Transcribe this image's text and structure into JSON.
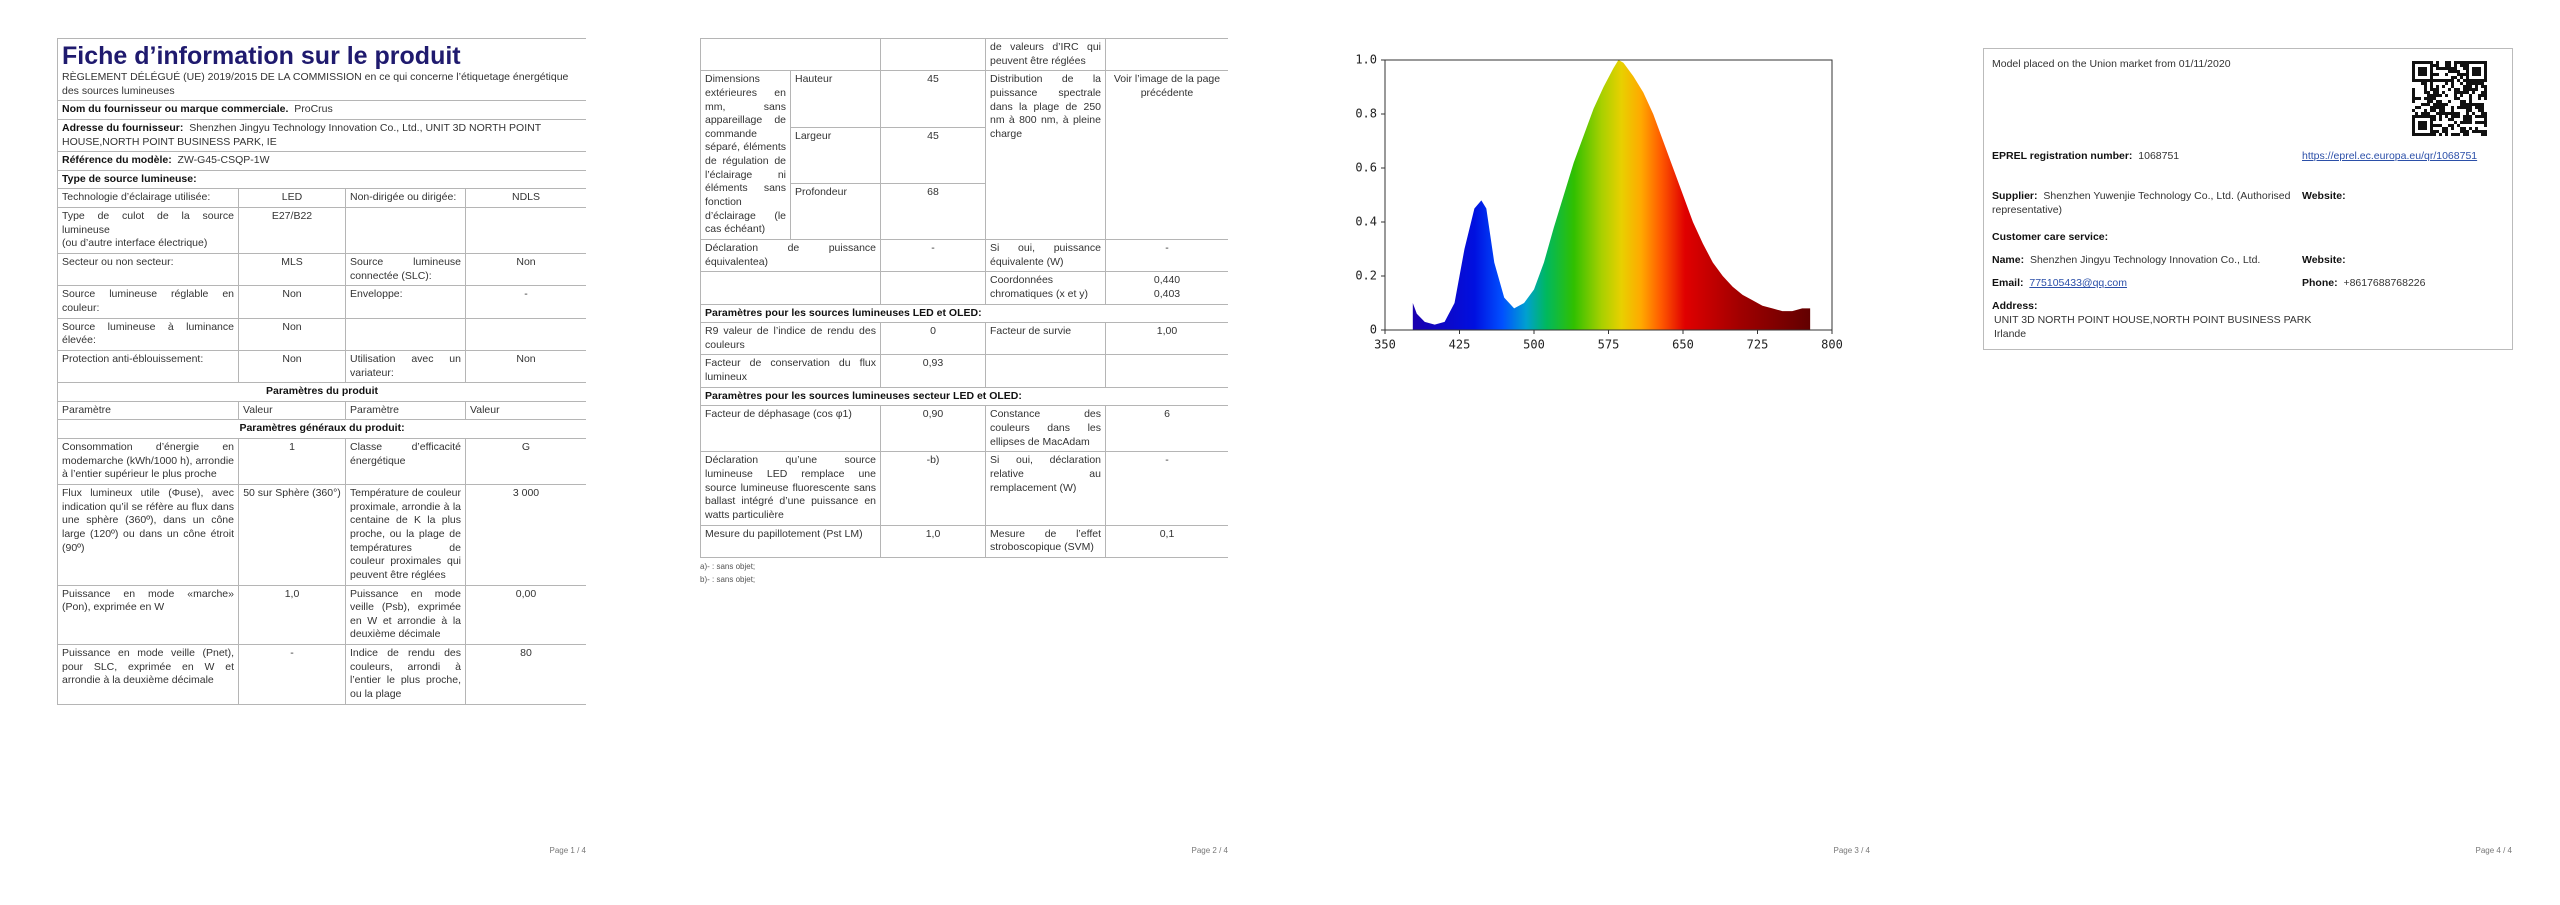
{
  "page1": {
    "title": "Fiche d’information sur le produit",
    "regulation": "RÈGLEMENT DÉLÉGUÉ (UE) 2019/2015 DE LA COMMISSION en ce qui concerne l’étiquetage énergétique des sources lumineuses",
    "rows": [
      {
        "label": "Nom du fournisseur ou marque commerciale.",
        "value": "ProCrus"
      },
      {
        "label": "Adresse du fournisseur:",
        "value": "Shenzhen Jingyu Technology Innovation Co., Ltd., UNIT 3D NORTH POINT HOUSE,NORTH POINT BUSINESS PARK, IE"
      },
      {
        "label": "Référence du modèle:",
        "value": "ZW-G45-CSQP-1W"
      },
      {
        "label": "Type de source lumineuse:"
      },
      {
        "cells": [
          "Technologie d’éclairage utilisée:",
          "LED",
          "Non-dirigée ou dirigée:",
          "NDLS"
        ]
      },
      {
        "cells": [
          "Type de culot de la source lumineuse\n(ou d’autre interface électrique)",
          "E27/B22",
          null,
          null
        ]
      },
      {
        "cells": [
          "Secteur ou non secteur:",
          "MLS",
          "Source lumineuse connectée (SLC):",
          "Non"
        ]
      },
      {
        "cells": [
          "Source lumineuse réglable en couleur:",
          "Non",
          "Enveloppe:",
          "-"
        ]
      },
      {
        "cells": [
          "Source lumineuse à luminance élevée:",
          "Non",
          null,
          null
        ]
      },
      {
        "cells": [
          "Protection anti-éblouissement:",
          "Non",
          "Utilisation avec un variateur:",
          "Non"
        ]
      },
      {
        "heading": "Paramètres du produit"
      },
      {
        "columns": [
          "Paramètre",
          "Valeur",
          "Paramètre",
          "Valeur"
        ]
      },
      {
        "heading": "Paramètres généraux du produit:"
      },
      {
        "cells": [
          "Consommation d’énergie en modemarche (kWh/1000 h), arrondie à l’entier supérieur le plus proche",
          "1",
          "Classe d’efficacité énergétique",
          "G"
        ]
      },
      {
        "cells": [
          "Flux lumineux utile (Φuse), avec indication qu’il se réfère au flux dans une sphère (360º), dans un cône large (120º) ou dans un cône étroit (90º)",
          "50 sur Sphère (360°)",
          "Température de couleur proximale, arrondie à la centaine de K la plus proche, ou la plage de températures de couleur proximales qui peuvent être réglées",
          "3 000"
        ]
      },
      {
        "cells": [
          "Puissance en mode «marche» (Pon), exprimée en W",
          "1,0",
          "Puissance en mode veille (Psb), exprimée en W et arrondie à la deuxième décimale",
          "0,00"
        ]
      },
      {
        "cells": [
          "Puissance en mode veille (Pnet), pour SLC, exprimée en W et arrondie à la deuxième décimale",
          "-",
          "Indice de rendu des couleurs, arrondi à l’entier le plus proche, ou la plage",
          "80"
        ]
      }
    ]
  },
  "page2": {
    "rows": [
      {
        "cells": [
          null,
          "",
          "de valeurs d’IRC qui peuvent être réglées",
          null
        ]
      },
      {
        "label": "Dimensions extérieures en mm, sans appareillage de commande séparé, éléments de régulation de l’éclairage ni éléments sans fonction d’éclairage (le cas échéant)",
        "dimensions": [
          {
            "name": "Hauteur",
            "value": "45"
          },
          {
            "name": "Largeur",
            "value": "45"
          },
          {
            "name": "Profondeur",
            "value": "68"
          }
        ],
        "cells": [
          "Distribution de la puissance spectrale dans la plage de 250 nm à 800 nm, à pleine charge",
          "Voir l’image de la page précédente"
        ]
      },
      {
        "cells": [
          "Déclaration de puissance équivalentea)",
          "-",
          "Si oui, puissance équivalente (W)",
          "-"
        ]
      },
      {
        "cells": [
          null,
          null,
          "Coordonnées chromatiques (x et y)",
          "0,440\n0,403"
        ]
      },
      {
        "heading": "Paramètres pour les sources lumineuses LED et OLED:"
      },
      {
        "cells": [
          "R9 valeur de l’indice de rendu des couleurs",
          "0",
          "Facteur de survie",
          "1,00"
        ]
      },
      {
        "cells": [
          "Facteur de conservation du flux lumineux",
          "0,93",
          null,
          null
        ]
      },
      {
        "heading": "Paramètres pour les sources lumineuses secteur LED et OLED:"
      },
      {
        "cells": [
          "Facteur de déphasage (cos φ1)",
          "0,90",
          "Constance des couleurs dans les ellipses de MacAdam",
          "6"
        ]
      },
      {
        "cells": [
          "Déclaration qu’une source lumineuse LED remplace une source lumineuse fluorescente sans ballast intégré d’une puissance en watts particulière",
          "-b)",
          "Si oui, déclaration relative au remplacement (W)",
          "-"
        ]
      },
      {
        "cells": [
          "Mesure du papillotement (Pst LM)",
          "1,0",
          "Mesure de l’effet stroboscopique (SVM)",
          "0,1"
        ]
      }
    ],
    "footnotes": [
      "a)- : sans objet;",
      "b)- : sans objet;"
    ]
  },
  "chart_data": {
    "type": "area",
    "x": [
      378,
      382,
      390,
      400,
      410,
      420,
      430,
      440,
      447,
      452,
      460,
      470,
      480,
      490,
      500,
      510,
      520,
      530,
      540,
      550,
      560,
      570,
      580,
      585,
      590,
      600,
      610,
      620,
      630,
      640,
      650,
      660,
      670,
      680,
      690,
      700,
      710,
      720,
      730,
      740,
      750,
      760,
      770,
      778
    ],
    "values": [
      0.1,
      0.06,
      0.03,
      0.02,
      0.03,
      0.1,
      0.3,
      0.45,
      0.48,
      0.45,
      0.25,
      0.12,
      0.08,
      0.1,
      0.15,
      0.25,
      0.38,
      0.5,
      0.62,
      0.72,
      0.82,
      0.9,
      0.97,
      1.0,
      0.99,
      0.94,
      0.88,
      0.8,
      0.7,
      0.6,
      0.5,
      0.4,
      0.32,
      0.25,
      0.2,
      0.16,
      0.13,
      0.11,
      0.09,
      0.08,
      0.07,
      0.07,
      0.08,
      0.08
    ],
    "xlim": [
      350,
      800
    ],
    "xticks": [
      350,
      425,
      500,
      575,
      650,
      725,
      800
    ],
    "ylim": [
      0,
      1
    ],
    "yticks": [
      0,
      0.2,
      0.4,
      0.6,
      0.8,
      {
        "value": 1,
        "label": "1.0"
      }
    ]
  },
  "page4": {
    "market": "Model placed on the Union market from 01/11/2020",
    "eprel": {
      "label": "EPREL registration number:",
      "value": "1068751",
      "link": "https://eprel.ec.europa.eu/qr/1068751"
    },
    "supplier": {
      "label": "Supplier:",
      "value": "Shenzhen Yuwenjie Technology Co., Ltd. (Authorised representative)",
      "website": "Website:"
    },
    "customer_care": "Customer care service:",
    "name": {
      "label": "Name:",
      "value": "Shenzhen Jingyu Technology Innovation Co., Ltd.",
      "website": "Website:"
    },
    "email": {
      "label": "Email:",
      "value": "775105433@qq.com",
      "phone_label": "Phone:",
      "phone": "+8617688768226"
    },
    "address": {
      "label": "Address:",
      "lines": [
        "UNIT 3D NORTH POINT HOUSE,NORTH POINT BUSINESS PARK",
        "Irlande"
      ]
    }
  },
  "page_numbers": [
    "Page 1 / 4",
    "Page 2 / 4",
    "Page 3 / 4",
    "Page 4 / 4"
  ]
}
